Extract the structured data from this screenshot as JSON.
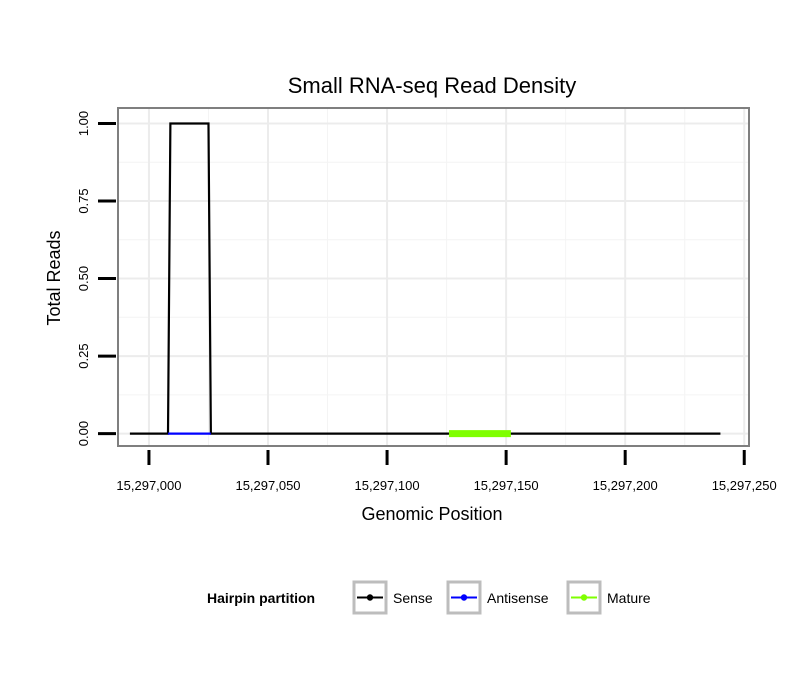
{
  "chart_data": {
    "type": "line",
    "title": "Small RNA-seq Read Density",
    "xlabel": "Genomic Position",
    "ylabel": "Total Reads",
    "xlim": [
      15296987,
      15297252
    ],
    "ylim": [
      -0.04,
      1.05
    ],
    "x_ticks": [
      15297000,
      15297050,
      15297100,
      15297150,
      15297200,
      15297250
    ],
    "x_tick_labels": [
      "15,297,000",
      "15,297,050",
      "15,297,100",
      "15,297,150",
      "15,297,200",
      "15,297,250"
    ],
    "y_ticks": [
      0,
      0.25,
      0.5,
      0.75,
      1.0
    ],
    "y_tick_labels": [
      "0.00",
      "0.25",
      "0.50",
      "0.75",
      "1.00"
    ],
    "grid": true,
    "legend_position": "bottom",
    "legend_title": "Hairpin partition",
    "series": [
      {
        "name": "Sense",
        "color": "#000000",
        "x": [
          15296992,
          15297008,
          15297009,
          15297025,
          15297026,
          15297240
        ],
        "y": [
          0,
          0,
          1,
          1,
          0,
          0
        ]
      },
      {
        "name": "Antisense",
        "color": "#0000ff",
        "x": [
          15297008,
          15297026
        ],
        "y": [
          0,
          0
        ]
      },
      {
        "name": "Mature",
        "color": "#7fff00",
        "x": [
          15297126,
          15297152
        ],
        "y": [
          0,
          0
        ]
      }
    ]
  }
}
